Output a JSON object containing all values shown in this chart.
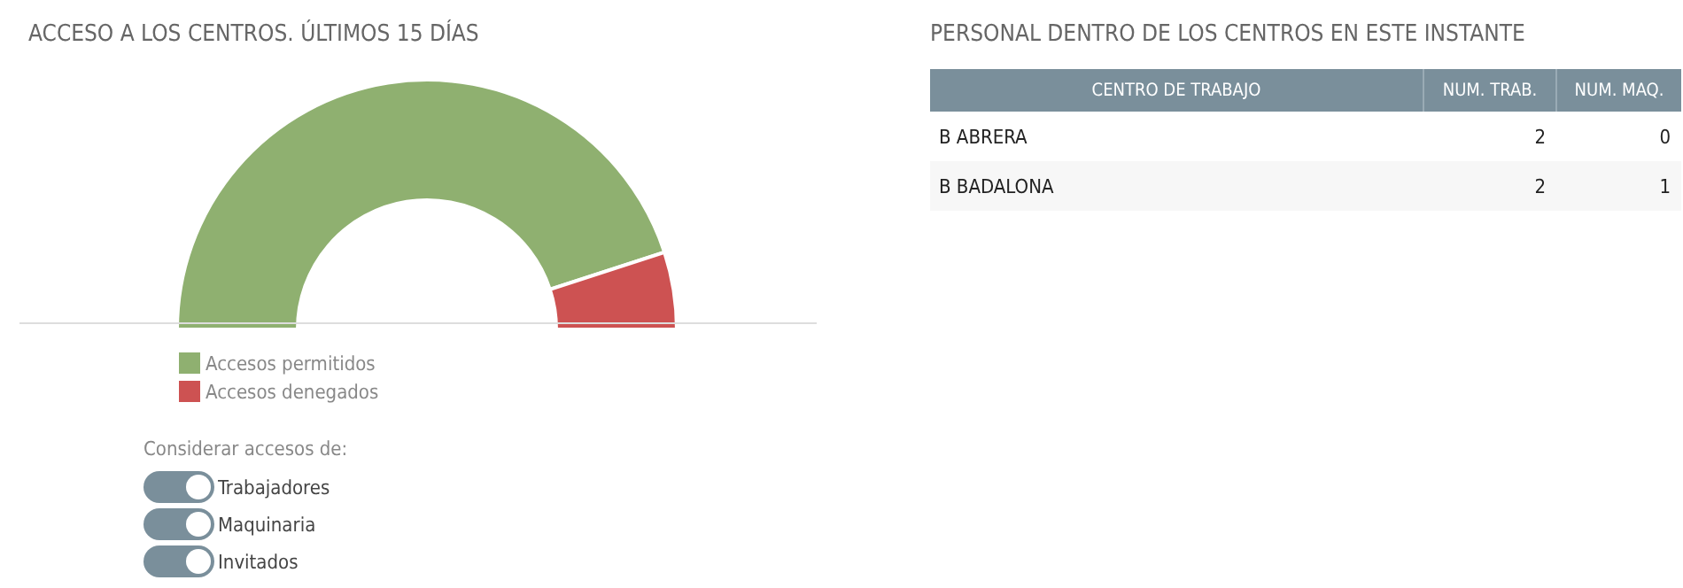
{
  "chart_data": [
    {
      "type": "donut",
      "title": "ACCESO A LOS CENTROS. ÚLTIMOS 15 DÍAS",
      "categories": [
        "Accesos permitidos",
        "Accesos denegados"
      ],
      "values": [
        90,
        10
      ],
      "colors": [
        "#8fb070",
        "#cd5252"
      ],
      "legend": "bottom",
      "annotations": [
        "Considerar accesos de:",
        "Trabajadores",
        "Maquinaria",
        "Invitados"
      ]
    },
    {
      "type": "other",
      "title": "PERSONAL DENTRO DE LOS CENTROS EN ESTE INSTANTE",
      "annotations": [
        "CENTRO DE TRABAJO",
        "NUM. TRAB.",
        "NUM. MAQ.",
        "B ABRERA",
        "2",
        "0",
        "B BADALONA",
        "2",
        "1"
      ]
    }
  ]
}
